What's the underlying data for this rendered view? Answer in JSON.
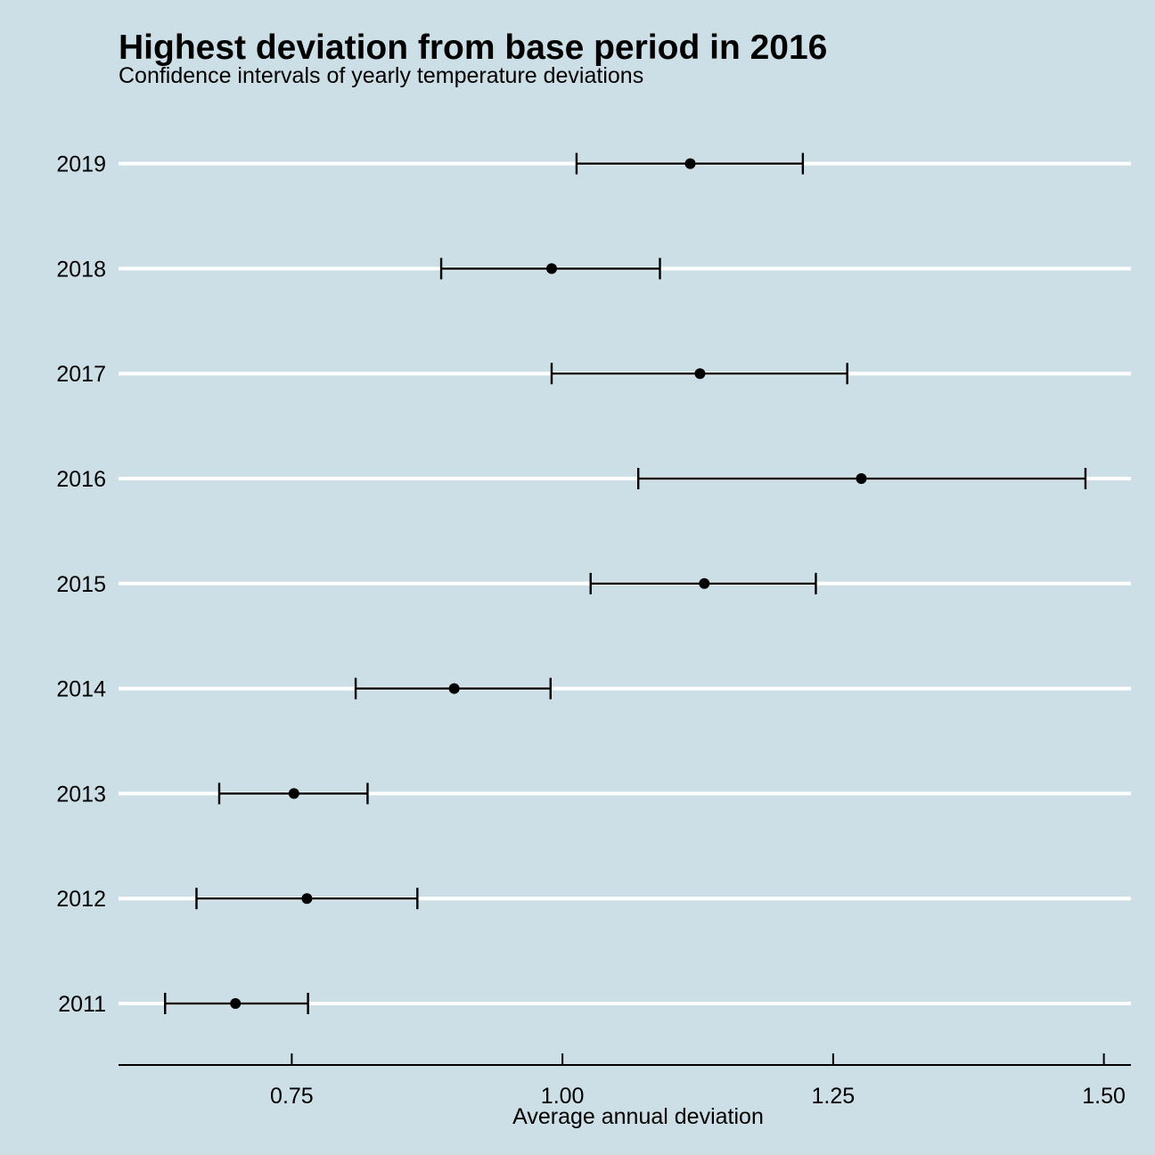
{
  "chart_data": {
    "type": "errorbar",
    "title": "Highest deviation from base period in 2016",
    "subtitle": "Confidence intervals of yearly temperature deviations",
    "xlabel": "Average annual deviation",
    "ylabel": "",
    "xlim": [
      0.59,
      1.525
    ],
    "xticks": [
      0.75,
      1.0,
      1.25,
      1.5
    ],
    "xtick_labels": [
      "0.75",
      "1.00",
      "1.25",
      "1.50"
    ],
    "categories": [
      "2011",
      "2012",
      "2013",
      "2014",
      "2015",
      "2016",
      "2017",
      "2018",
      "2019"
    ],
    "estimate": [
      0.698,
      0.764,
      0.752,
      0.9,
      1.131,
      1.276,
      1.127,
      0.99,
      1.118
    ],
    "lower": [
      0.633,
      0.662,
      0.683,
      0.809,
      1.026,
      1.07,
      0.99,
      0.888,
      1.013
    ],
    "upper": [
      0.765,
      0.866,
      0.82,
      0.989,
      1.234,
      1.483,
      1.263,
      1.09,
      1.222
    ],
    "grid": "horizontal major gridlines only, white",
    "colors": {
      "background": "#cddfe6",
      "grid": "#ffffff",
      "marks": "#000000"
    }
  }
}
